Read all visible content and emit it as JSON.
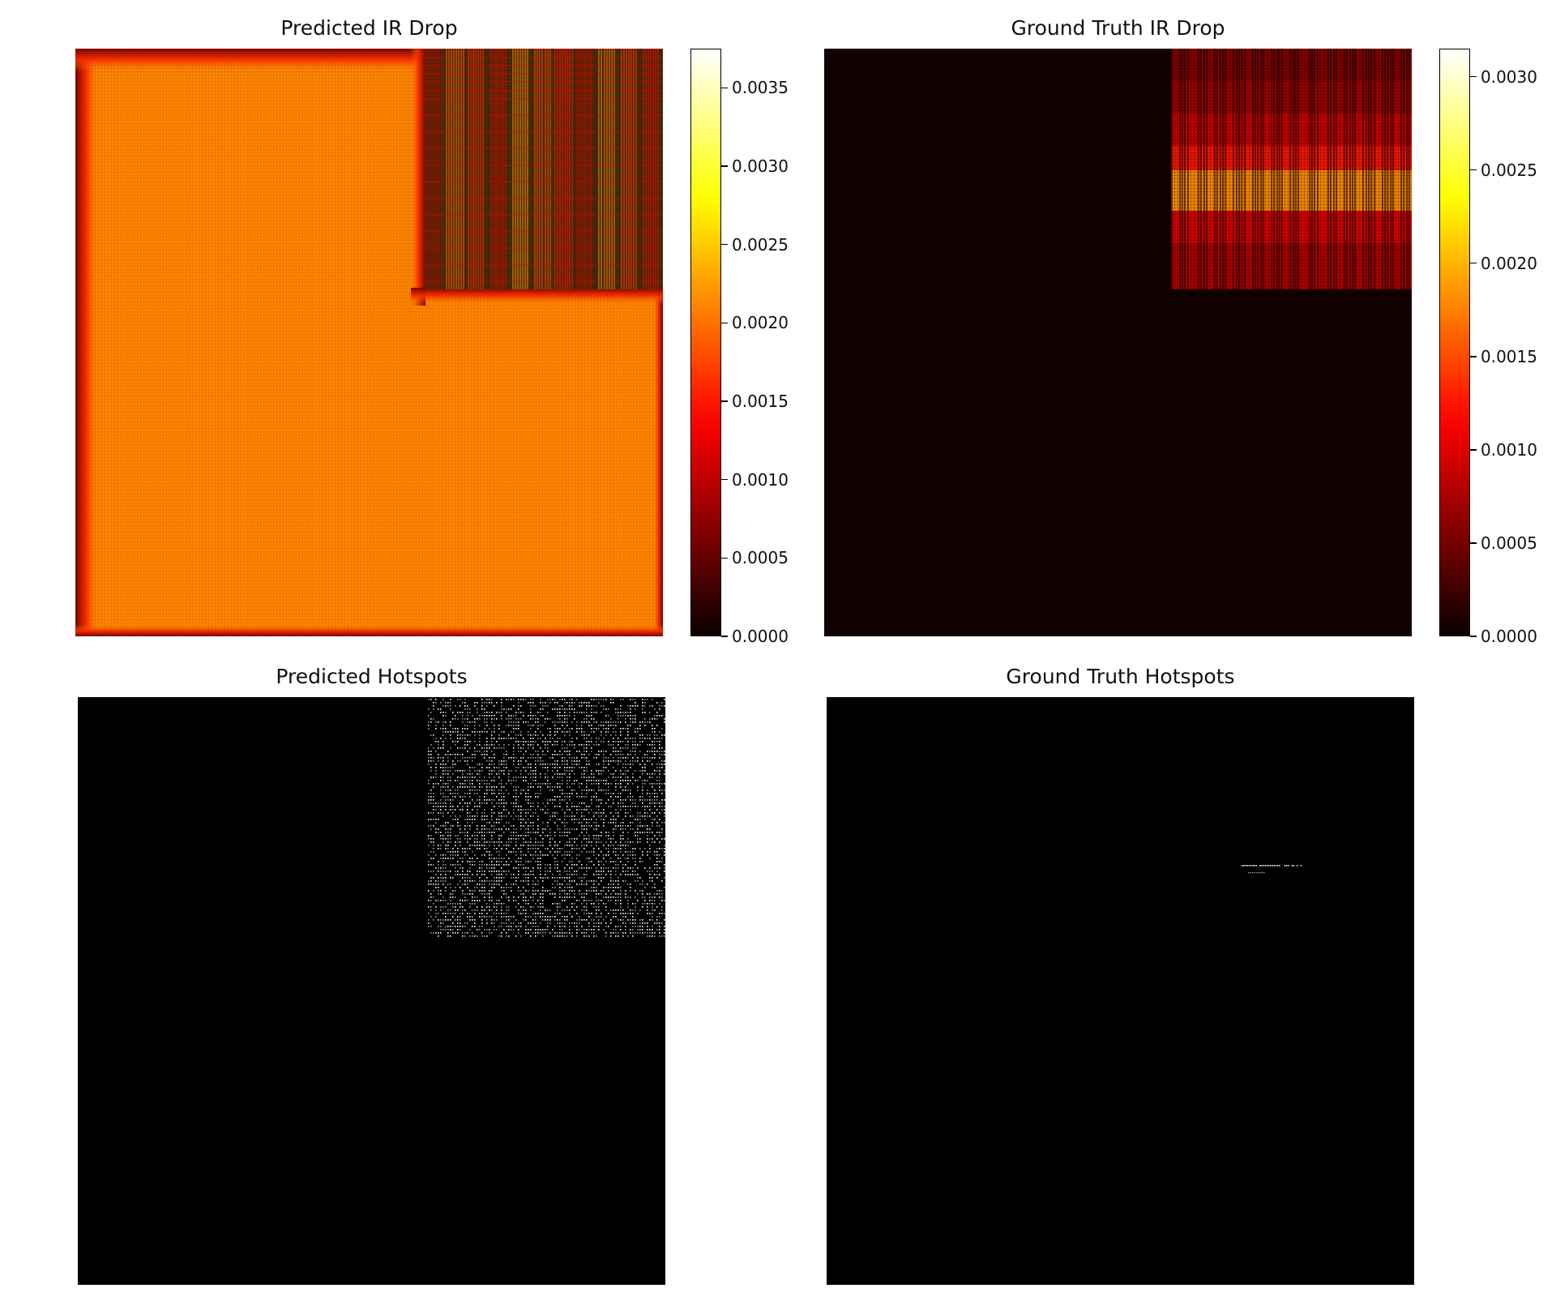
{
  "chart_data": [
    {
      "type": "heatmap",
      "title": "Predicted IR Drop",
      "colormap": "hot",
      "clim": [
        0.0,
        0.00375
      ],
      "colorbar_ticks": [
        "0.0000",
        "0.0005",
        "0.0010",
        "0.0015",
        "0.0020",
        "0.0025",
        "0.0030",
        "0.0035"
      ],
      "regions": [
        {
          "name": "background",
          "value": 0.0021
        },
        {
          "name": "top-right block",
          "value": 0.0012
        },
        {
          "name": "edges",
          "value": 0.0006
        }
      ]
    },
    {
      "type": "heatmap",
      "title": "Ground Truth IR Drop",
      "colormap": "hot",
      "clim": [
        0.0,
        0.00315
      ],
      "colorbar_ticks": [
        "0.0000",
        "0.0005",
        "0.0010",
        "0.0015",
        "0.0020",
        "0.0025",
        "0.0030"
      ],
      "regions": [
        {
          "name": "background",
          "value": 3e-05
        },
        {
          "name": "top-right block",
          "value": 0.0009
        },
        {
          "name": "top-right band peak",
          "value": 0.0022
        }
      ]
    },
    {
      "type": "heatmap",
      "title": "Predicted Hotspots",
      "colormap": "gray",
      "binary": true
    },
    {
      "type": "heatmap",
      "title": "Ground Truth Hotspots",
      "colormap": "gray",
      "binary": true
    }
  ],
  "colors": {
    "hot_black": "#0b0000",
    "hot_darkred": "#5a0000",
    "hot_red": "#ff0a00",
    "hot_orange": "#ff9a00",
    "hot_yellow": "#ffff30",
    "hot_white": "#ffffff"
  }
}
